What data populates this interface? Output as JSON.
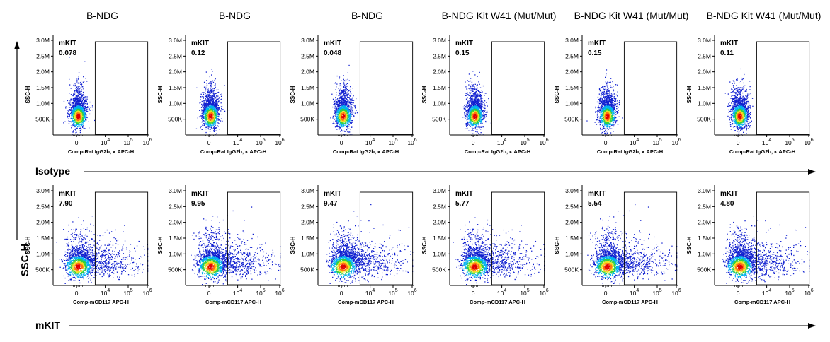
{
  "chart_data": {
    "type": "scatter",
    "plot_style": "flow cytometry pseudocolor density dot plots with rectangular gates",
    "columns": [
      "B-NDG",
      "B-NDG",
      "B-NDG",
      "B-NDG Kit W41 (Mut/Mut)",
      "B-NDG Kit W41 (Mut/Mut)",
      "B-NDG Kit W41 (Mut/Mut)"
    ],
    "shared_y_label": "SSC-H",
    "row_labels": [
      "Isotype",
      "mKIT"
    ],
    "panel_ylabel": "SSC-H",
    "y_ticks": [
      "500K",
      "1.0M",
      "1.5M",
      "2.0M",
      "2.5M",
      "3.0M"
    ],
    "ylim": [
      0,
      3000000
    ],
    "x_ticks": [
      {
        "base": "0",
        "exp": ""
      },
      {
        "base": "10",
        "exp": "4"
      },
      {
        "base": "10",
        "exp": "5"
      },
      {
        "base": "10",
        "exp": "6"
      }
    ],
    "x_scale": "biexponential",
    "rows": [
      {
        "row_label": "Isotype",
        "xlabel": "Comp-Rat IgG2b, κ APC-H",
        "panels": [
          {
            "column": "B-NDG",
            "gate": "mKIT",
            "value": "0.078"
          },
          {
            "column": "B-NDG",
            "gate": "mKIT",
            "value": "0.12"
          },
          {
            "column": "B-NDG",
            "gate": "mKIT",
            "value": "0.048"
          },
          {
            "column": "B-NDG Kit W41 (Mut/Mut)",
            "gate": "mKIT",
            "value": "0.15"
          },
          {
            "column": "B-NDG Kit W41 (Mut/Mut)",
            "gate": "mKIT",
            "value": "0.15"
          },
          {
            "column": "B-NDG Kit W41 (Mut/Mut)",
            "gate": "mKIT",
            "value": "0.11"
          }
        ]
      },
      {
        "row_label": "mKIT",
        "xlabel": "Comp-mCD117 APC-H",
        "panels": [
          {
            "column": "B-NDG",
            "gate": "mKIT",
            "value": "7.90"
          },
          {
            "column": "B-NDG",
            "gate": "mKIT",
            "value": "9.95"
          },
          {
            "column": "B-NDG",
            "gate": "mKIT",
            "value": "9.47"
          },
          {
            "column": "B-NDG Kit W41 (Mut/Mut)",
            "gate": "mKIT",
            "value": "5.77"
          },
          {
            "column": "B-NDG Kit W41 (Mut/Mut)",
            "gate": "mKIT",
            "value": "5.54"
          },
          {
            "column": "B-NDG Kit W41 (Mut/Mut)",
            "gate": "mKIT",
            "value": "4.80"
          }
        ]
      }
    ],
    "colors": {
      "density": [
        "#1020d0",
        "#00b0f0",
        "#30d040",
        "#f0e020",
        "#ff7010",
        "#e00000"
      ],
      "axes": "#000000"
    }
  }
}
